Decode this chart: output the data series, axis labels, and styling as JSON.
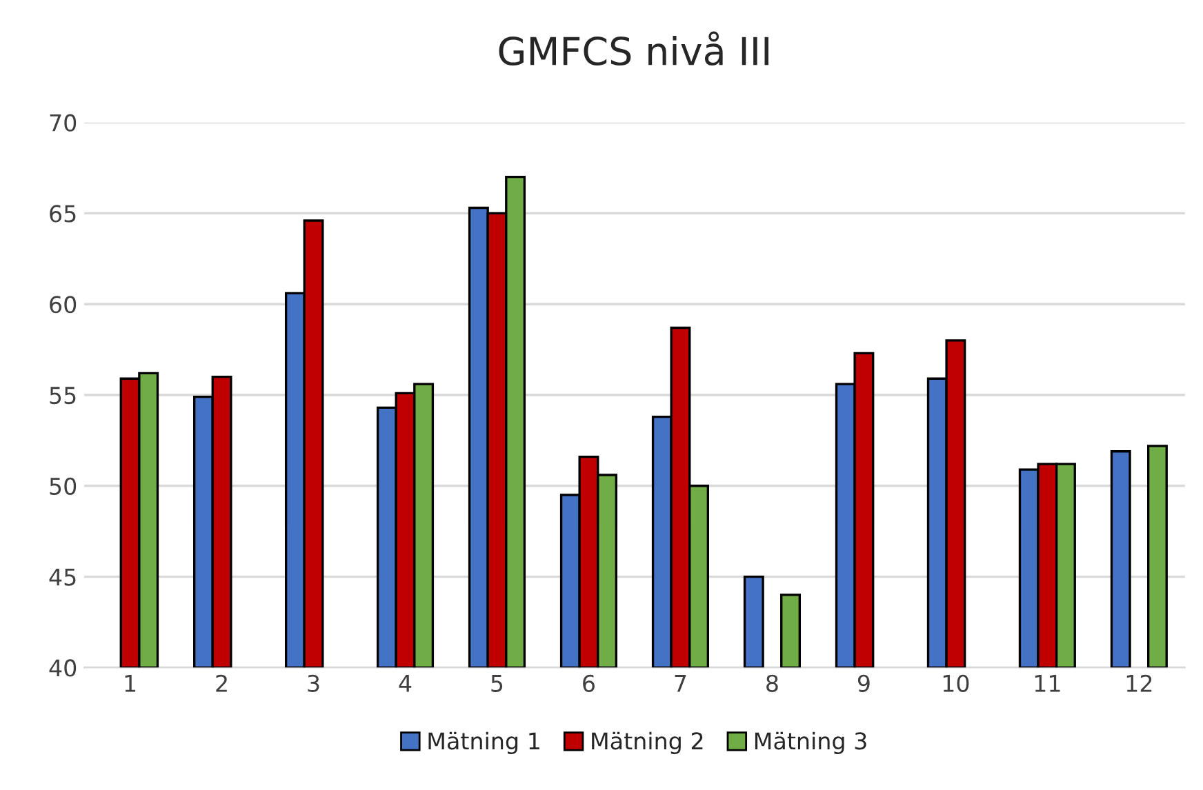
{
  "chart_data": {
    "type": "bar",
    "title": "GMFCS nivå III",
    "categories": [
      "1",
      "2",
      "3",
      "4",
      "5",
      "6",
      "7",
      "8",
      "9",
      "10",
      "11",
      "12"
    ],
    "series": [
      {
        "name": "Mätning 1",
        "color": "#4472c4",
        "values": [
          null,
          54.9,
          60.6,
          54.3,
          65.3,
          49.5,
          53.8,
          45.0,
          55.6,
          55.9,
          50.9,
          51.9
        ]
      },
      {
        "name": "Mätning 2",
        "color": "#c00000",
        "values": [
          55.9,
          56.0,
          64.6,
          55.1,
          65.0,
          51.6,
          58.7,
          null,
          57.3,
          58.0,
          51.2,
          null
        ]
      },
      {
        "name": "Mätning 3",
        "color": "#70ad47",
        "values": [
          56.2,
          null,
          null,
          55.6,
          67.0,
          50.6,
          50.0,
          44.0,
          null,
          null,
          51.2,
          52.2
        ]
      }
    ],
    "ylim": [
      40,
      70
    ],
    "yticks": [
      40,
      45,
      50,
      55,
      60,
      65,
      70
    ],
    "grid": "y",
    "legend": "bottom"
  }
}
